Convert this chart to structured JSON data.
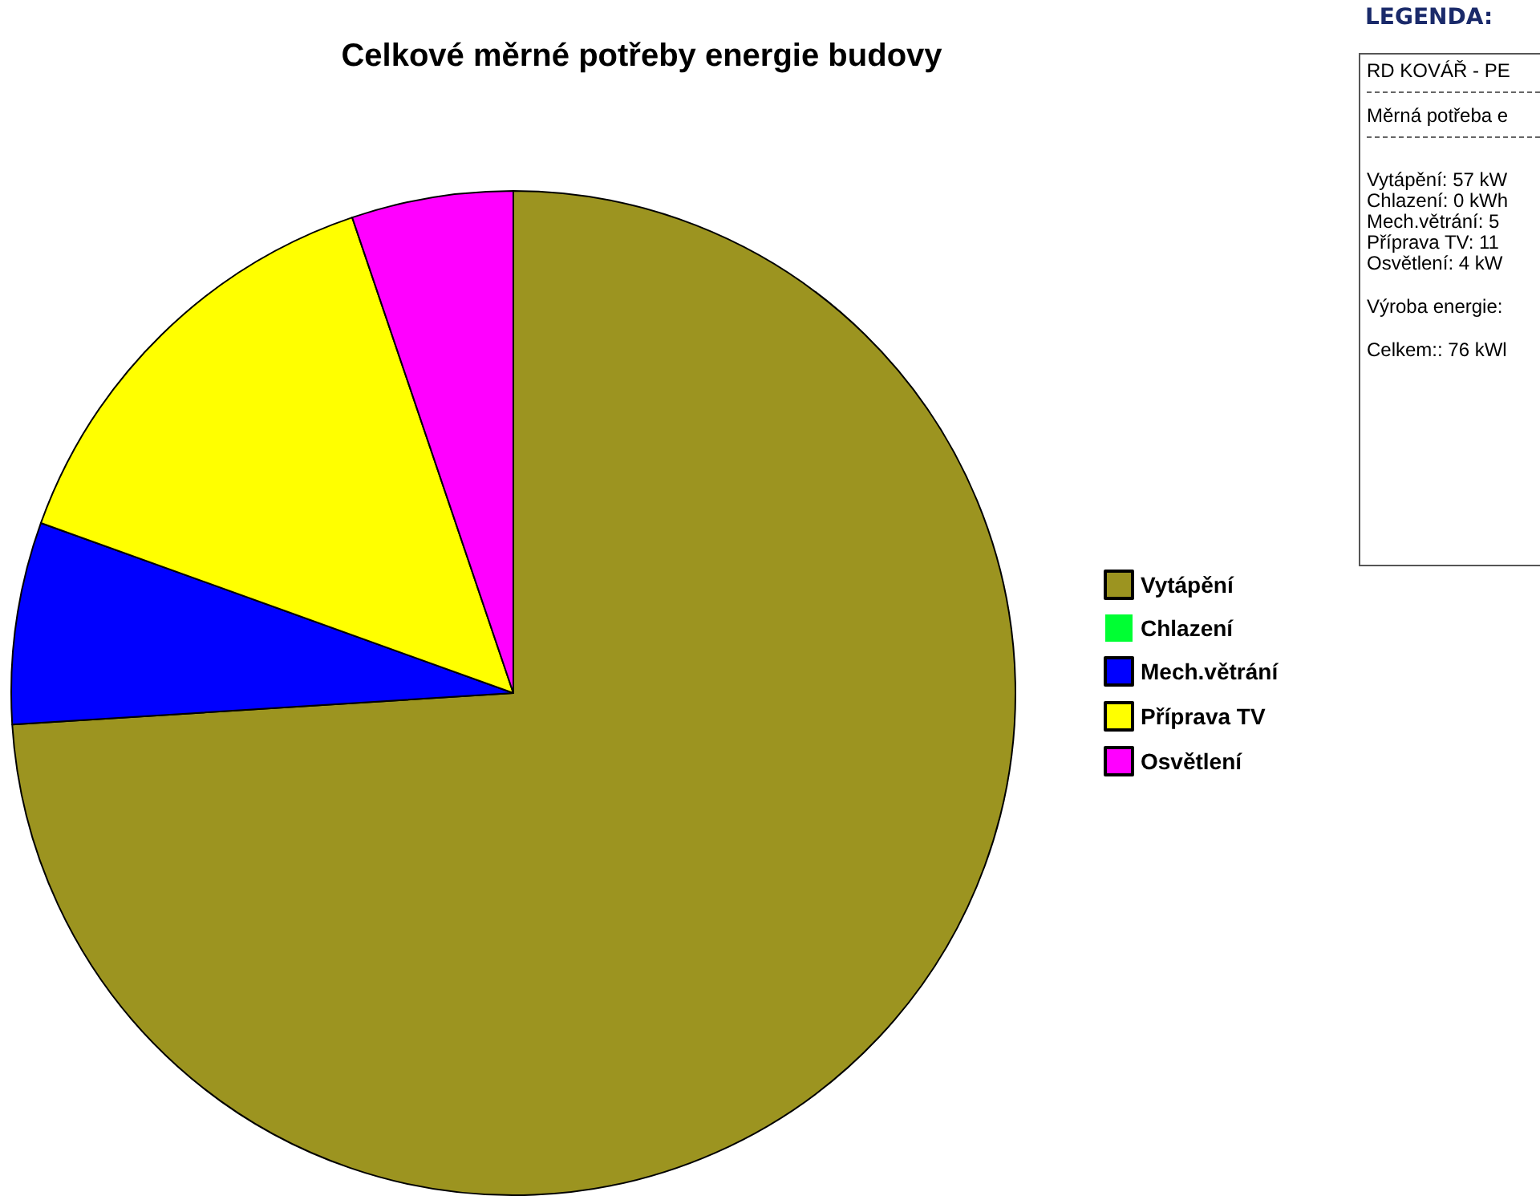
{
  "chart_data": {
    "type": "pie",
    "title": "Celkové měrné potřeby energie budovy",
    "categories": [
      "Vytápění",
      "Chlazení",
      "Mech.větrání",
      "Příprava TV",
      "Osvětlení"
    ],
    "values": [
      74.0,
      0,
      6.5,
      14.3,
      5.2
    ],
    "colors": [
      "#9c9420",
      "#00ff33",
      "#0000ff",
      "#ffff00",
      "#ff00ff"
    ],
    "legend": "right",
    "annotations": [
      "LEGENDA:",
      "RD KOVÁŘ - PE",
      "Měrná potřeba e",
      "Vytápění: 57 kW",
      "Chlazení: 0 kWh",
      "Mech.větrání: 5",
      "Příprava TV: 11",
      "Osvětlení: 4 kW",
      "Výroba energie:",
      "Celkem:: 76 kWl"
    ]
  }
}
